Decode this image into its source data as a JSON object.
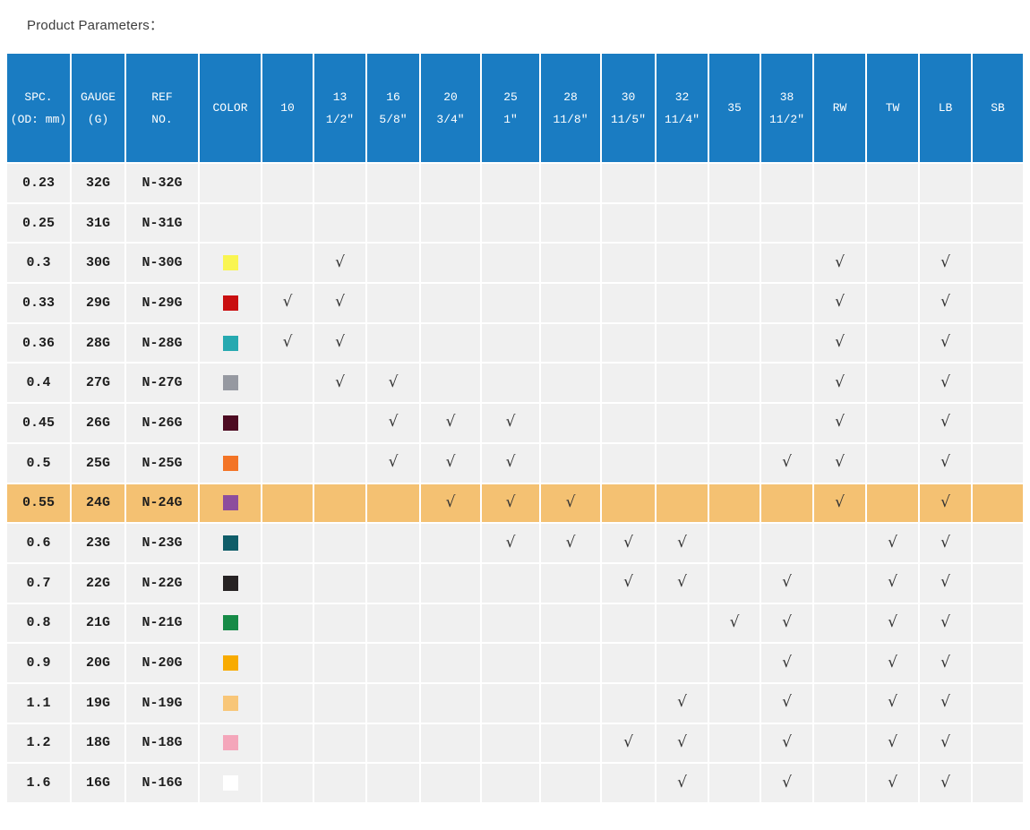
{
  "title": "Product Parameters：",
  "colors": {
    "header_bg": "#1a7cc2",
    "header_text": "#ffffff",
    "row_bg": "#f0f0f0",
    "highlight_bg": "#f4c172",
    "check_color": "#333333"
  },
  "check_glyph": "√",
  "table": {
    "columns": [
      {
        "id": "spc",
        "lines": [
          "SPC.",
          "(OD: mm)"
        ]
      },
      {
        "id": "gauge",
        "lines": [
          "GAUGE",
          "(G)"
        ]
      },
      {
        "id": "ref",
        "lines": [
          "REF",
          "NO."
        ]
      },
      {
        "id": "color",
        "lines": [
          "COLOR"
        ]
      },
      {
        "id": "10",
        "lines": [
          "10"
        ]
      },
      {
        "id": "13",
        "lines": [
          "13",
          "1/2″"
        ]
      },
      {
        "id": "16",
        "lines": [
          "16",
          "5/8″"
        ]
      },
      {
        "id": "20",
        "lines": [
          "20",
          "3/4″"
        ]
      },
      {
        "id": "25",
        "lines": [
          "25",
          "1″"
        ]
      },
      {
        "id": "28",
        "lines": [
          "28",
          "11/8″"
        ]
      },
      {
        "id": "30",
        "lines": [
          "30",
          "11/5″"
        ]
      },
      {
        "id": "32",
        "lines": [
          "32",
          "11/4″"
        ]
      },
      {
        "id": "35",
        "lines": [
          "35"
        ]
      },
      {
        "id": "38",
        "lines": [
          "38",
          "11/2″"
        ]
      },
      {
        "id": "RW",
        "lines": [
          "RW"
        ]
      },
      {
        "id": "TW",
        "lines": [
          "TW"
        ]
      },
      {
        "id": "LB",
        "lines": [
          "LB"
        ]
      },
      {
        "id": "SB",
        "lines": [
          "SB"
        ]
      }
    ],
    "rows": [
      {
        "spc": "0.23",
        "gauge": "32G",
        "ref": "N-32G",
        "color": null,
        "checks": [],
        "highlight": false
      },
      {
        "spc": "0.25",
        "gauge": "31G",
        "ref": "N-31G",
        "color": null,
        "checks": [],
        "highlight": false
      },
      {
        "spc": "0.3",
        "gauge": "30G",
        "ref": "N-30G",
        "color": "#f9f551",
        "checks": [
          "13",
          "RW",
          "LB"
        ],
        "highlight": false
      },
      {
        "spc": "0.33",
        "gauge": "29G",
        "ref": "N-29G",
        "color": "#c90f10",
        "checks": [
          "10",
          "13",
          "RW",
          "LB"
        ],
        "highlight": false
      },
      {
        "spc": "0.36",
        "gauge": "28G",
        "ref": "N-28G",
        "color": "#26a9b0",
        "checks": [
          "10",
          "13",
          "RW",
          "LB"
        ],
        "highlight": false
      },
      {
        "spc": "0.4",
        "gauge": "27G",
        "ref": "N-27G",
        "color": "#9699a1",
        "checks": [
          "13",
          "16",
          "RW",
          "LB"
        ],
        "highlight": false
      },
      {
        "spc": "0.45",
        "gauge": "26G",
        "ref": "N-26G",
        "color": "#4d0b22",
        "checks": [
          "16",
          "20",
          "25",
          "RW",
          "LB"
        ],
        "highlight": false
      },
      {
        "spc": "0.5",
        "gauge": "25G",
        "ref": "N-25G",
        "color": "#f37426",
        "checks": [
          "16",
          "20",
          "25",
          "38",
          "RW",
          "LB"
        ],
        "highlight": false
      },
      {
        "spc": "0.55",
        "gauge": "24G",
        "ref": "N-24G",
        "color": "#8d4d9d",
        "checks": [
          "20",
          "25",
          "28",
          "RW",
          "LB"
        ],
        "highlight": true
      },
      {
        "spc": "0.6",
        "gauge": "23G",
        "ref": "N-23G",
        "color": "#0f5d69",
        "checks": [
          "25",
          "28",
          "30",
          "32",
          "TW",
          "LB"
        ],
        "highlight": false
      },
      {
        "spc": "0.7",
        "gauge": "22G",
        "ref": "N-22G",
        "color": "#262223",
        "checks": [
          "30",
          "32",
          "38",
          "TW",
          "LB"
        ],
        "highlight": false
      },
      {
        "spc": "0.8",
        "gauge": "21G",
        "ref": "N-21G",
        "color": "#168b47",
        "checks": [
          "35",
          "38",
          "TW",
          "LB"
        ],
        "highlight": false
      },
      {
        "spc": "0.9",
        "gauge": "20G",
        "ref": "N-20G",
        "color": "#f8ab00",
        "checks": [
          "38",
          "TW",
          "LB"
        ],
        "highlight": false
      },
      {
        "spc": "1.1",
        "gauge": "19G",
        "ref": "N-19G",
        "color": "#f8c678",
        "checks": [
          "32",
          "38",
          "TW",
          "LB"
        ],
        "highlight": false
      },
      {
        "spc": "1.2",
        "gauge": "18G",
        "ref": "N-18G",
        "color": "#f4a6ba",
        "checks": [
          "30",
          "32",
          "38",
          "TW",
          "LB"
        ],
        "highlight": false
      },
      {
        "spc": "1.6",
        "gauge": "16G",
        "ref": "N-16G",
        "color": "#ffffff",
        "checks": [
          "32",
          "38",
          "TW",
          "LB"
        ],
        "highlight": false
      }
    ]
  }
}
